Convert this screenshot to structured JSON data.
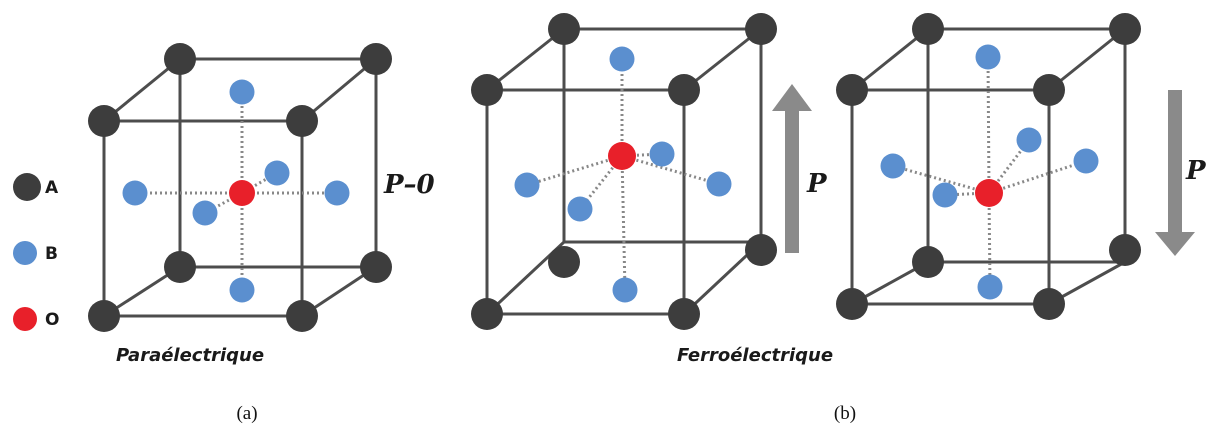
{
  "legend": {
    "atom_a": {
      "label": "A",
      "color": "#3d3d3d"
    },
    "atom_b": {
      "label": "B",
      "color": "#5b8fcf"
    },
    "atom_o": {
      "label": "O",
      "color": "#e8202a"
    }
  },
  "panel_a": {
    "phase_label": "Paraélectrique",
    "polarization_label": "P–0",
    "sublabel": "(a)"
  },
  "panel_b": {
    "phase_label": "Ferroélectrique",
    "sublabel": "(b)",
    "cell_up": {
      "polarization_label": "P",
      "arrow_direction": "up"
    },
    "cell_down": {
      "polarization_label": "P",
      "arrow_direction": "down"
    }
  },
  "colors": {
    "edge": "#4d4d4d",
    "bond": "#888888",
    "arrow": "#8a8a8a"
  }
}
